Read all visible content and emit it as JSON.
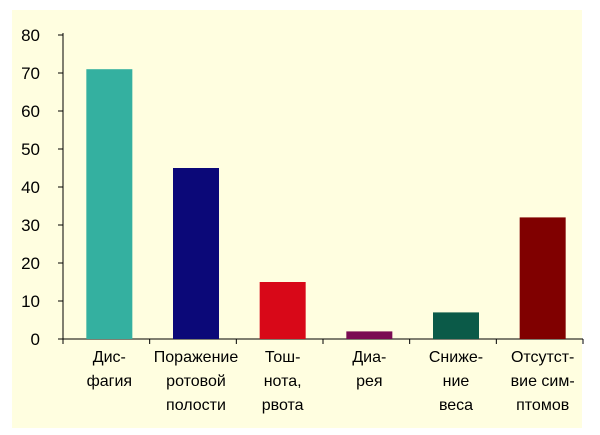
{
  "chart_data": {
    "type": "bar",
    "categories": [
      [
        "Дис-",
        "фагия"
      ],
      [
        "Поражение",
        "ротовой",
        "полости"
      ],
      [
        "Тош-",
        "нота,",
        "рвота"
      ],
      [
        "Диа-",
        "рея"
      ],
      [
        "Сниже-",
        "ние",
        "веса"
      ],
      [
        "Отсутст-",
        "вие сим-",
        "птомов"
      ]
    ],
    "values": [
      71,
      45,
      15,
      2,
      7,
      32
    ],
    "colors": [
      "#34b0a0",
      "#0b0878",
      "#d80818",
      "#7a0b52",
      "#0b5a48",
      "#800000"
    ],
    "ylim": [
      0,
      80
    ],
    "yticks": [
      0,
      10,
      20,
      30,
      40,
      50,
      60,
      70,
      80
    ],
    "title": "",
    "xlabel": "",
    "ylabel": "",
    "grid": false,
    "plot_background": "#fffee0"
  }
}
